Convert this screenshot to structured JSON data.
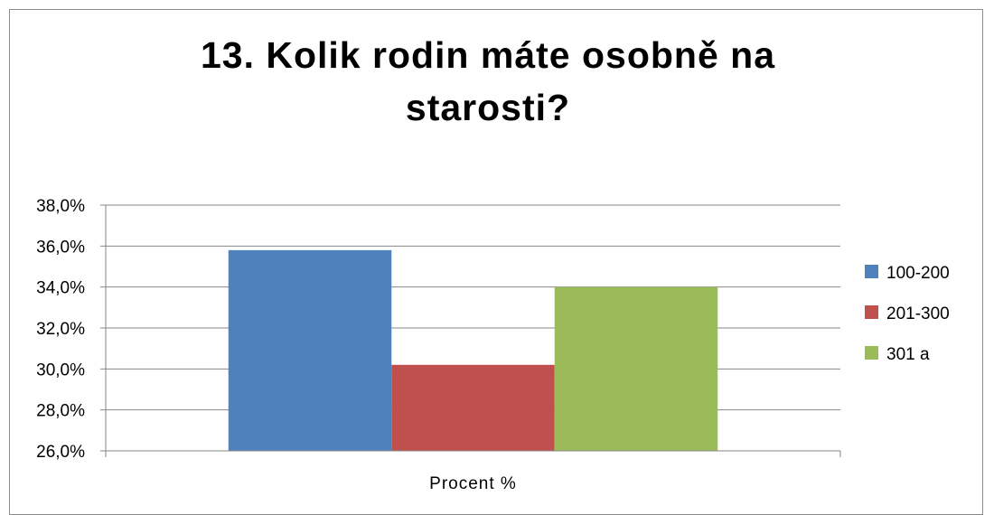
{
  "chart_data": {
    "type": "bar",
    "title": "13. Kolik rodin máte osobně na starosti?",
    "categories": [
      "Procent %"
    ],
    "series": [
      {
        "name": "100-200",
        "values": [
          35.8
        ],
        "color": "#4f81bd"
      },
      {
        "name": "201-300",
        "values": [
          30.2
        ],
        "color": "#c0504d"
      },
      {
        "name": "301 a",
        "values": [
          34.0
        ],
        "color": "#9bbb59"
      }
    ],
    "ylim": [
      26,
      38
    ],
    "yticks": [
      "26,0%",
      "28,0%",
      "30,0%",
      "32,0%",
      "34,0%",
      "36,0%",
      "38,0%"
    ],
    "grid": true,
    "legend": "right"
  }
}
